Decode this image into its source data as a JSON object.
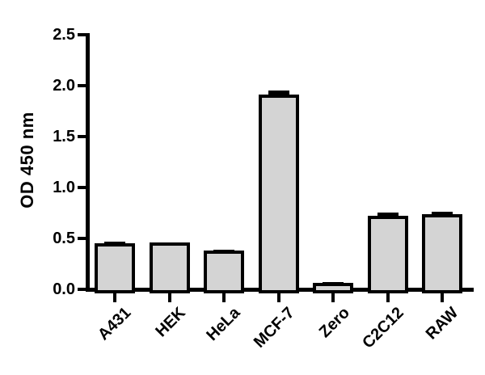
{
  "chart_data": {
    "type": "bar",
    "title": "",
    "ylabel": "OD 450 nm",
    "xlabel": "",
    "categories": [
      "A431",
      "HEK",
      "HeLa",
      "MCF-7",
      "Zero",
      "C2C12",
      "RAW"
    ],
    "values": [
      0.45,
      0.46,
      0.38,
      1.91,
      0.06,
      0.72,
      0.74
    ],
    "errors": [
      0.02,
      0,
      0.01,
      0.04,
      0.015,
      0.035,
      0.025
    ],
    "error_style": "upper error caps only",
    "ylim": [
      0,
      2.5
    ],
    "ytick_labels": [
      "0.0",
      "0.5",
      "1.0",
      "1.5",
      "2.0",
      "2.5"
    ],
    "ytick_values": [
      0,
      0.5,
      1.0,
      1.5,
      2.0,
      2.5
    ],
    "grid": false,
    "legend_position": "none",
    "colors": {
      "bar_fill": "#d4d4d4",
      "bar_border": "#000000",
      "axis": "#000000",
      "text": "#000000",
      "background": "#ffffff"
    }
  }
}
